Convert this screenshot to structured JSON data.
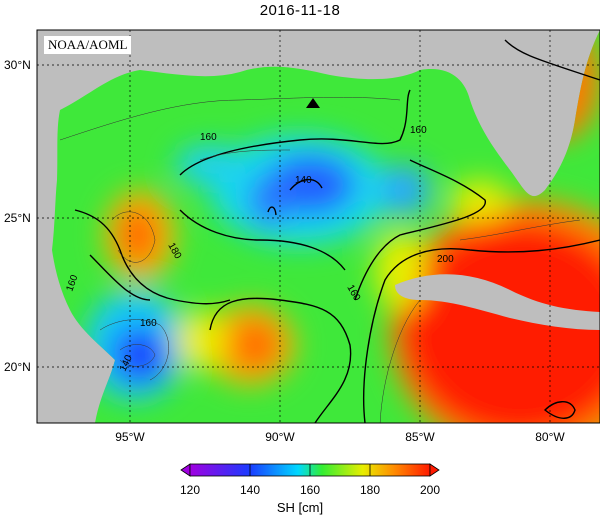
{
  "title": "2016-11-18",
  "source": "NOAA/AOML",
  "colorbar": {
    "label": "SH [cm]",
    "ticks": [
      "120",
      "140",
      "160",
      "180",
      "200"
    ],
    "min": 120,
    "max": 200,
    "colors": [
      "#8a00c8",
      "#1a3cff",
      "#00d8ff",
      "#33ee33",
      "#e8ee00",
      "#ff8c00",
      "#ff1a00"
    ]
  },
  "axes": {
    "lat_labels": [
      "30°N",
      "25°N",
      "20°N"
    ],
    "lon_labels": [
      "95°W",
      "90°W",
      "85°W",
      "80°W"
    ],
    "lat_range": [
      18,
      31
    ],
    "lon_range": [
      -98,
      -78
    ]
  },
  "contour_labels": [
    "160",
    "160",
    "140",
    "180",
    "160",
    "160",
    "140",
    "160",
    "200"
  ],
  "markers": [
    {
      "name": "station",
      "symbol": "triangle",
      "lon": -88.3,
      "lat": 28.5
    }
  ],
  "colors": {
    "land": "#bebebe",
    "background": "#ffffff"
  }
}
